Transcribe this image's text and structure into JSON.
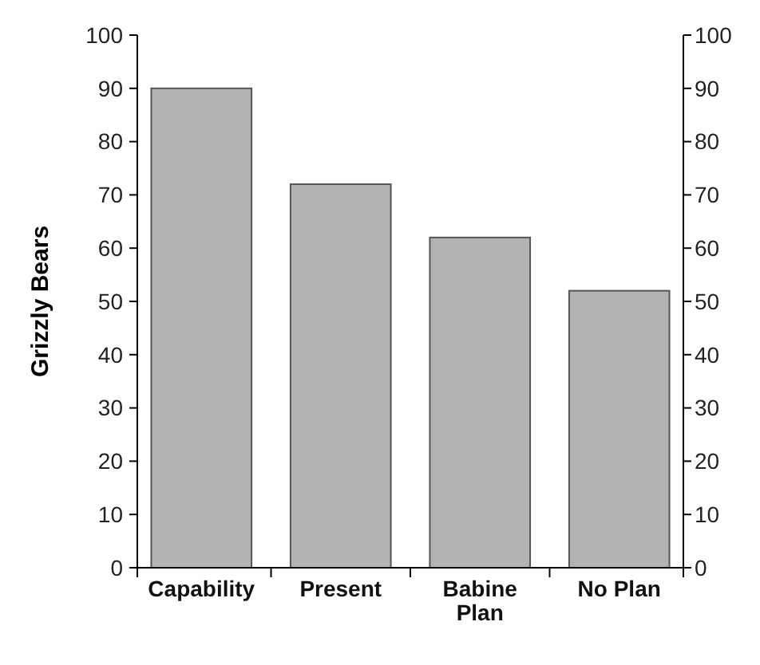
{
  "chart_data": {
    "type": "bar",
    "ylabel": "Grizzly Bears",
    "categories": [
      "Capability",
      "Present",
      "Babine\nPlan",
      "No Plan"
    ],
    "values": [
      90,
      72,
      62,
      52
    ],
    "color": "#b3b3b3",
    "ylim": [
      0,
      100
    ],
    "yticks": [
      0,
      10,
      20,
      30,
      40,
      50,
      60,
      70,
      80,
      90,
      100
    ],
    "y2lim": [
      0,
      100
    ],
    "y2ticks": [
      0,
      10,
      20,
      30,
      40,
      50,
      60,
      70,
      80,
      90,
      100
    ],
    "grid": false
  }
}
